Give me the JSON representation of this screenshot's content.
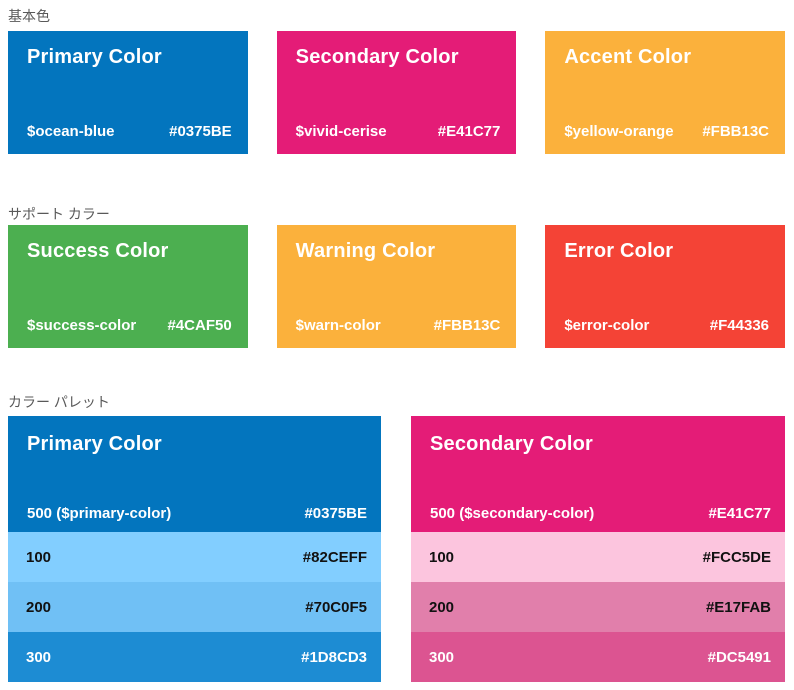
{
  "colors": {
    "page_background": "#FFFFFF",
    "heading_text": "#595959",
    "light_row_text": "#111111",
    "dark_row_text": "#FFFFFF"
  },
  "sections": [
    {
      "heading": "基本色",
      "cards": [
        {
          "title": "Primary Color",
          "var": "$ocean-blue",
          "hex": "#0375BE",
          "bg": "#0375BE",
          "text": "#FFFFFF"
        },
        {
          "title": "Secondary Color",
          "var": "$vivid-cerise",
          "hex": "#E41C77",
          "bg": "#E41C77",
          "text": "#FFFFFF"
        },
        {
          "title": "Accent Color",
          "var": "$yellow-orange",
          "hex": "#FBB13C",
          "bg": "#FBB13C",
          "text": "#FFFFFF"
        }
      ]
    },
    {
      "heading": "サポート カラー",
      "cards": [
        {
          "title": "Success Color",
          "var": "$success-color",
          "hex": "#4CAF50",
          "bg": "#4CAF50",
          "text": "#FFFFFF"
        },
        {
          "title": "Warning Color",
          "var": "$warn-color",
          "hex": "#FBB13C",
          "bg": "#FBB13C",
          "text": "#FFFFFF"
        },
        {
          "title": "Error Color",
          "var": "$error-color",
          "hex": "#F44336",
          "bg": "#F44336",
          "text": "#FFFFFF"
        }
      ]
    },
    {
      "heading": "カラー パレット",
      "palettes": [
        {
          "title": "Primary Color",
          "header": {
            "label": "500 ($primary-color)",
            "hex": "#0375BE",
            "bg": "#0375BE",
            "text": "#FFFFFF"
          },
          "shades": [
            {
              "label": "100",
              "hex": "#82CEFF",
              "bg": "#82CEFF",
              "text": "#111111"
            },
            {
              "label": "200",
              "hex": "#70C0F5",
              "bg": "#70C0F5",
              "text": "#111111"
            },
            {
              "label": "300",
              "hex": "#1D8CD3",
              "bg": "#1D8CD3",
              "text": "#FFFFFF"
            }
          ]
        },
        {
          "title": "Secondary Color",
          "header": {
            "label": "500 ($secondary-color)",
            "hex": "#E41C77",
            "bg": "#E41C77",
            "text": "#FFFFFF"
          },
          "shades": [
            {
              "label": "100",
              "hex": "#FCC5DE",
              "bg": "#FCC5DE",
              "text": "#111111"
            },
            {
              "label": "200",
              "hex": "#E17FAB",
              "bg": "#E17FAB",
              "text": "#111111"
            },
            {
              "label": "300",
              "hex": "#DC5491",
              "bg": "#DC5491",
              "text": "#FFFFFF"
            }
          ]
        }
      ]
    }
  ]
}
